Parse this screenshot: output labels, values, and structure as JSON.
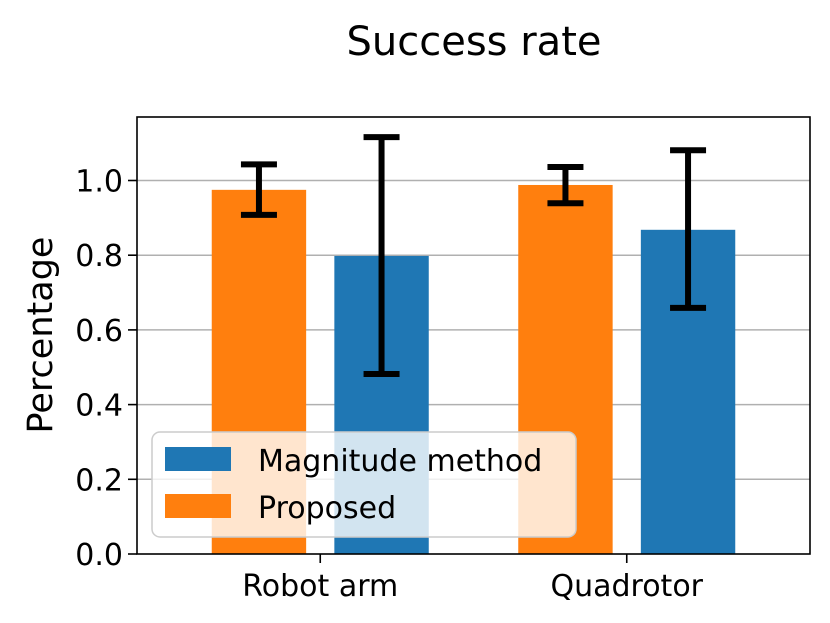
{
  "chart_data": {
    "type": "bar",
    "title": "Success rate",
    "xlabel": "",
    "ylabel": "Percentage",
    "categories": [
      "Robot arm",
      "Quadrotor"
    ],
    "series": [
      {
        "name": "Proposed",
        "color": "#ff7f0e",
        "values": [
          0.975,
          0.988
        ],
        "err_low": [
          0.908,
          0.939
        ],
        "err_high": [
          1.043,
          1.036
        ]
      },
      {
        "name": "Magnitude method",
        "color": "#1f77b4",
        "values": [
          0.798,
          0.868
        ],
        "err_low": [
          0.482,
          0.659
        ],
        "err_high": [
          1.116,
          1.081
        ]
      }
    ],
    "ylim": [
      0,
      1.17
    ],
    "yticks": [
      "0.0",
      "0.2",
      "0.4",
      "0.6",
      "0.8",
      "1.0"
    ],
    "grid": true,
    "legend": {
      "position": "lower-left",
      "entries": [
        "Magnitude method",
        "Proposed"
      ]
    }
  }
}
